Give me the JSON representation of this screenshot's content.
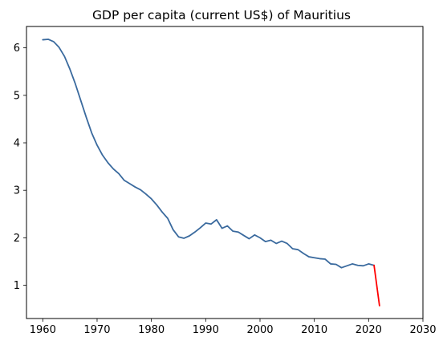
{
  "chart_data": {
    "type": "line",
    "title": "GDP per capita (current US$) of Mauritius",
    "xlabel": "",
    "ylabel": "",
    "xlim": [
      1957,
      2030
    ],
    "ylim": [
      0.3,
      6.45
    ],
    "x_ticks": [
      1960,
      1970,
      1980,
      1990,
      2000,
      2010,
      2020,
      2030
    ],
    "y_ticks": [
      1,
      2,
      3,
      4,
      5,
      6
    ],
    "grid": false,
    "legend": "none",
    "series": [
      {
        "color": "#3a6a9e",
        "x": [
          1960,
          1961,
          1962,
          1963,
          1964,
          1965,
          1966,
          1967,
          1968,
          1969,
          1970,
          1971,
          1972,
          1973,
          1974,
          1975,
          1976,
          1977,
          1978,
          1979,
          1980,
          1981,
          1982,
          1983,
          1984,
          1985,
          1986,
          1987,
          1988,
          1989,
          1990,
          1991,
          1992,
          1993,
          1994,
          1995,
          1996,
          1997,
          1998,
          1999,
          2000,
          2001,
          2002,
          2003,
          2004,
          2005,
          2006,
          2007,
          2008,
          2009,
          2010,
          2011,
          2012,
          2013,
          2014,
          2015,
          2016,
          2017,
          2018,
          2019,
          2020,
          2021
        ],
        "values": [
          6.17,
          6.18,
          6.13,
          6.01,
          5.82,
          5.55,
          5.24,
          4.89,
          4.54,
          4.21,
          3.95,
          3.74,
          3.58,
          3.45,
          3.35,
          3.21,
          3.14,
          3.07,
          3.01,
          2.92,
          2.82,
          2.69,
          2.54,
          2.41,
          2.17,
          2.02,
          1.99,
          2.04,
          2.12,
          2.21,
          2.31,
          2.29,
          2.38,
          2.2,
          2.25,
          2.14,
          2.12,
          2.05,
          1.98,
          2.06,
          2.0,
          1.92,
          1.95,
          1.88,
          1.93,
          1.88,
          1.77,
          1.75,
          1.67,
          1.6,
          1.58,
          1.56,
          1.55,
          1.45,
          1.44,
          1.37,
          1.41,
          1.45,
          1.42,
          1.41,
          1.45,
          1.42
        ]
      },
      {
        "color": "#ff0000",
        "x": [
          2021,
          2022
        ],
        "values": [
          1.42,
          0.57
        ]
      }
    ]
  }
}
